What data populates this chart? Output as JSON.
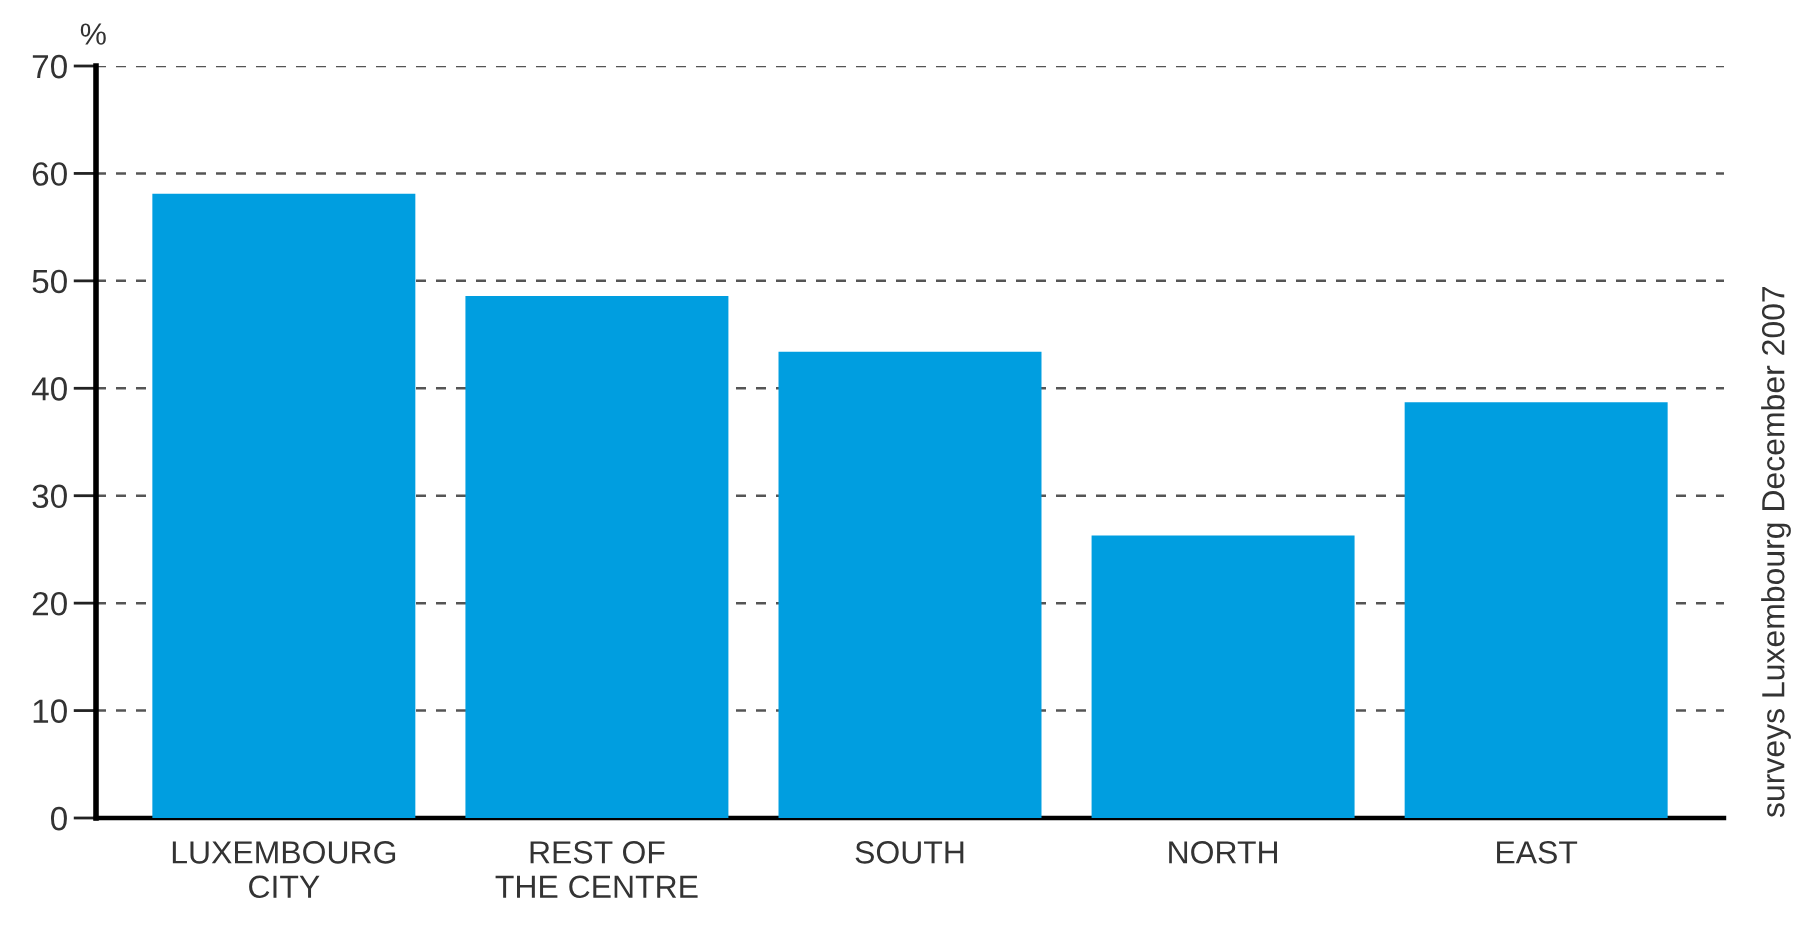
{
  "chart_data": {
    "type": "bar",
    "ylabel": "%",
    "categories": [
      "LUXEMBOURG\nCITY",
      "REST OF\nTHE CENTRE",
      "SOUTH",
      "NORTH",
      "EAST"
    ],
    "values": [
      58.1,
      48.6,
      43.4,
      26.3,
      38.7
    ],
    "color": "#009ee0",
    "ylim": [
      0,
      70
    ],
    "yticks": [
      0,
      10,
      20,
      30,
      40,
      50,
      60,
      70
    ],
    "grid": "y",
    "annotations": [
      "surveys Luxembourg December 2007"
    ]
  }
}
